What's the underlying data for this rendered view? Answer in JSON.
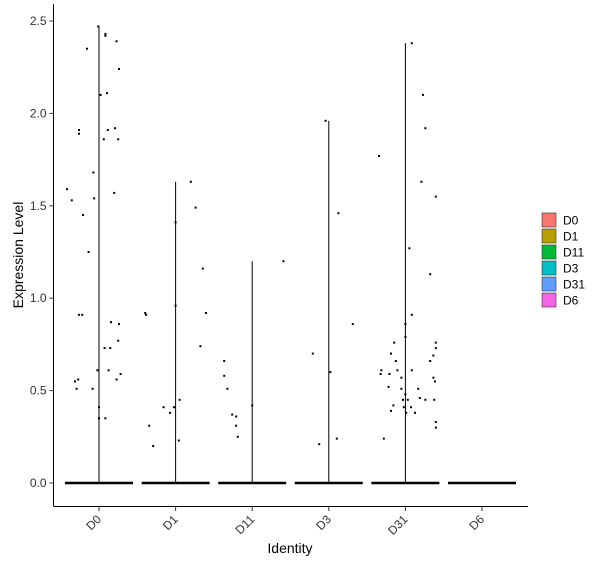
{
  "chart_data": {
    "type": "violin",
    "xlabel": "Identity",
    "ylabel": "Expression Level",
    "categories": [
      "D0",
      "D1",
      "D11",
      "D3",
      "D31",
      "D6"
    ],
    "yticks": [
      0.0,
      0.5,
      1.0,
      1.5,
      2.0,
      2.5
    ],
    "ytick_labels": [
      "0.0",
      "0.5",
      "1.0",
      "1.5",
      "2.0",
      "2.5"
    ],
    "ylim": [
      -0.12,
      2.58
    ],
    "grid": false,
    "legend": {
      "placement": "right",
      "entries": [
        {
          "name": "D0",
          "color": "#F8766D"
        },
        {
          "name": "D1",
          "color": "#B79F00"
        },
        {
          "name": "D11",
          "color": "#00BA38"
        },
        {
          "name": "D3",
          "color": "#00BFC4"
        },
        {
          "name": "D31",
          "color": "#619CFF"
        },
        {
          "name": "D6",
          "color": "#F564E3"
        }
      ]
    },
    "series": [
      {
        "category": "D0",
        "max": 2.47,
        "points": [
          {
            "x": -0.01,
            "y": 2.47
          },
          {
            "x": 0.08,
            "y": 2.43
          },
          {
            "x": 0.08,
            "y": 2.42
          },
          {
            "x": 0.22,
            "y": 2.39
          },
          {
            "x": -0.15,
            "y": 2.35
          },
          {
            "x": 0.25,
            "y": 2.24
          },
          {
            "x": 0.1,
            "y": 2.11
          },
          {
            "x": 0.02,
            "y": 2.1
          },
          {
            "x": -0.25,
            "y": 1.91
          },
          {
            "x": -0.25,
            "y": 1.89
          },
          {
            "x": 0.11,
            "y": 1.91
          },
          {
            "x": 0.2,
            "y": 1.92
          },
          {
            "x": 0.24,
            "y": 1.86
          },
          {
            "x": 0.06,
            "y": 1.86
          },
          {
            "x": -0.07,
            "y": 1.68
          },
          {
            "x": -0.4,
            "y": 1.59
          },
          {
            "x": 0.19,
            "y": 1.57
          },
          {
            "x": -0.06,
            "y": 1.54
          },
          {
            "x": -0.34,
            "y": 1.53
          },
          {
            "x": -0.2,
            "y": 1.45
          },
          {
            "x": -0.13,
            "y": 1.25
          },
          {
            "x": -0.25,
            "y": 0.91
          },
          {
            "x": -0.21,
            "y": 0.91
          },
          {
            "x": 0.15,
            "y": 0.87
          },
          {
            "x": 0.25,
            "y": 0.86
          },
          {
            "x": 0.07,
            "y": 0.73
          },
          {
            "x": 0.14,
            "y": 0.73
          },
          {
            "x": 0.24,
            "y": 0.77
          },
          {
            "x": -0.02,
            "y": 0.61
          },
          {
            "x": 0.12,
            "y": 0.61
          },
          {
            "x": 0.27,
            "y": 0.59
          },
          {
            "x": 0.22,
            "y": 0.56
          },
          {
            "x": -0.26,
            "y": 0.56
          },
          {
            "x": -0.3,
            "y": 0.55
          },
          {
            "x": -0.28,
            "y": 0.51
          },
          {
            "x": -0.08,
            "y": 0.51
          },
          {
            "x": 0.0,
            "y": 0.41
          },
          {
            "x": 0.0,
            "y": 0.35
          },
          {
            "x": 0.08,
            "y": 0.35
          }
        ]
      },
      {
        "category": "D1",
        "max": 1.63,
        "points": [
          {
            "x": 0.19,
            "y": 1.63
          },
          {
            "x": 0.0,
            "y": 1.41
          },
          {
            "x": 0.25,
            "y": 1.49
          },
          {
            "x": 0.34,
            "y": 1.16
          },
          {
            "x": 0.0,
            "y": 0.96
          },
          {
            "x": -0.38,
            "y": 0.92
          },
          {
            "x": -0.37,
            "y": 0.91
          },
          {
            "x": 0.38,
            "y": 0.92
          },
          {
            "x": 0.31,
            "y": 0.74
          },
          {
            "x": 0.05,
            "y": 0.45
          },
          {
            "x": -0.02,
            "y": 0.41
          },
          {
            "x": -0.15,
            "y": 0.41
          },
          {
            "x": -0.07,
            "y": 0.38
          },
          {
            "x": -0.33,
            "y": 0.31
          },
          {
            "x": 0.04,
            "y": 0.23
          },
          {
            "x": -0.28,
            "y": 0.2
          }
        ]
      },
      {
        "category": "D11",
        "max": 1.2,
        "points": [
          {
            "x": 0.39,
            "y": 1.2
          },
          {
            "x": -0.35,
            "y": 0.66
          },
          {
            "x": -0.35,
            "y": 0.58
          },
          {
            "x": -0.31,
            "y": 0.51
          },
          {
            "x": -0.2,
            "y": 0.36
          },
          {
            "x": -0.25,
            "y": 0.37
          },
          {
            "x": -0.2,
            "y": 0.31
          },
          {
            "x": -0.18,
            "y": 0.25
          },
          {
            "x": 0.0,
            "y": 0.42
          }
        ]
      },
      {
        "category": "D3",
        "max": 1.96,
        "points": [
          {
            "x": -0.04,
            "y": 1.96
          },
          {
            "x": 0.12,
            "y": 1.46
          },
          {
            "x": 0.3,
            "y": 0.86
          },
          {
            "x": -0.2,
            "y": 0.7
          },
          {
            "x": 0.02,
            "y": 0.6
          },
          {
            "x": 0.1,
            "y": 0.24
          },
          {
            "x": -0.12,
            "y": 0.21
          }
        ]
      },
      {
        "category": "D31",
        "max": 2.38,
        "points": [
          {
            "x": 0.08,
            "y": 2.38
          },
          {
            "x": 0.22,
            "y": 2.1
          },
          {
            "x": 0.25,
            "y": 1.92
          },
          {
            "x": -0.33,
            "y": 1.77
          },
          {
            "x": 0.2,
            "y": 1.63
          },
          {
            "x": 0.38,
            "y": 1.55
          },
          {
            "x": 0.05,
            "y": 1.27
          },
          {
            "x": 0.31,
            "y": 1.13
          },
          {
            "x": 0.08,
            "y": 0.91
          },
          {
            "x": 0.0,
            "y": 0.86
          },
          {
            "x": 0.0,
            "y": 0.79
          },
          {
            "x": 0.38,
            "y": 0.76
          },
          {
            "x": 0.38,
            "y": 0.73
          },
          {
            "x": -0.14,
            "y": 0.76
          },
          {
            "x": -0.18,
            "y": 0.7
          },
          {
            "x": 0.35,
            "y": 0.69
          },
          {
            "x": -0.12,
            "y": 0.66
          },
          {
            "x": 0.31,
            "y": 0.66
          },
          {
            "x": -0.3,
            "y": 0.61
          },
          {
            "x": -0.31,
            "y": 0.59
          },
          {
            "x": -0.1,
            "y": 0.61
          },
          {
            "x": 0.08,
            "y": 0.61
          },
          {
            "x": -0.2,
            "y": 0.59
          },
          {
            "x": -0.05,
            "y": 0.57
          },
          {
            "x": 0.35,
            "y": 0.57
          },
          {
            "x": 0.37,
            "y": 0.55
          },
          {
            "x": -0.21,
            "y": 0.52
          },
          {
            "x": 0.16,
            "y": 0.51
          },
          {
            "x": -0.05,
            "y": 0.51
          },
          {
            "x": 0.0,
            "y": 0.48
          },
          {
            "x": -0.03,
            "y": 0.45
          },
          {
            "x": 0.03,
            "y": 0.45
          },
          {
            "x": 0.18,
            "y": 0.46
          },
          {
            "x": 0.25,
            "y": 0.45
          },
          {
            "x": 0.36,
            "y": 0.45
          },
          {
            "x": -0.15,
            "y": 0.42
          },
          {
            "x": -0.02,
            "y": 0.41
          },
          {
            "x": 0.07,
            "y": 0.41
          },
          {
            "x": -0.18,
            "y": 0.39
          },
          {
            "x": 0.01,
            "y": 0.38
          },
          {
            "x": 0.12,
            "y": 0.38
          },
          {
            "x": 0.38,
            "y": 0.33
          },
          {
            "x": 0.38,
            "y": 0.3
          },
          {
            "x": -0.27,
            "y": 0.24
          }
        ]
      },
      {
        "category": "D6",
        "max": 0.0,
        "points": []
      }
    ]
  }
}
